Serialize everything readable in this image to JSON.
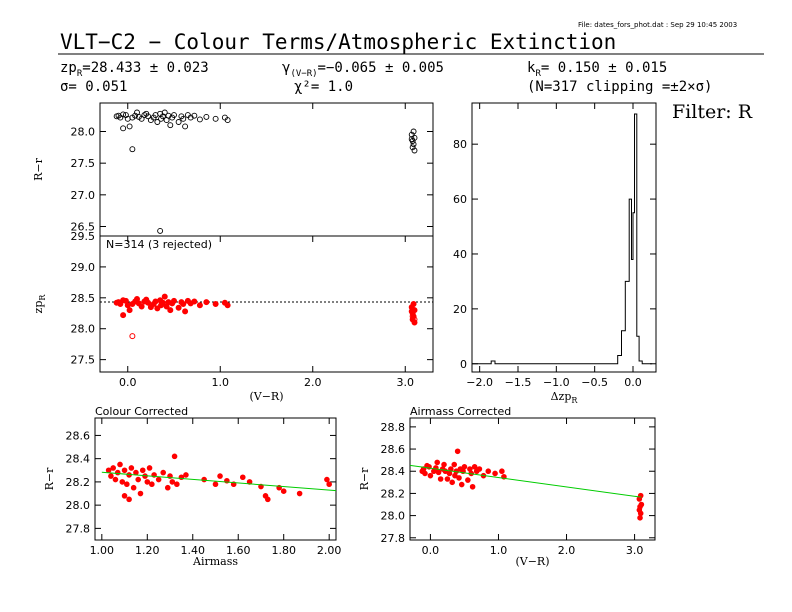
{
  "file_label": "File: dates_fors_phot.dat : Sep 29 10:45 2003",
  "title": "VLT−C2 − Colour Terms/Atmospheric Extinction",
  "stats": {
    "zp": "zp",
    "zp_sub": "R",
    "zp_value": "=28.433 ± 0.023",
    "sigma": "σ= 0.051",
    "gamma": "γ",
    "gamma_sub": "(V−R)",
    "gamma_value": "=−0.065 ± 0.005",
    "chi2": "χ²=  1.0",
    "k": "k",
    "k_sub": "R",
    "k_value": "= 0.150 ± 0.015",
    "clip_note": "(N=317 clipping =±2×σ)"
  },
  "filter_label": "Filter: R",
  "chart_data": [
    {
      "id": "panel1",
      "type": "scatter",
      "ylabel": "R−r",
      "xlim": [
        -0.3,
        3.3
      ],
      "ylim": [
        26.35,
        28.45
      ],
      "yticks": [
        "26.5",
        "27.0",
        "27.5",
        "28.0"
      ],
      "ytick_values": [
        26.5,
        27.0,
        27.5,
        28.0
      ],
      "points": [
        [
          -0.1,
          28.25
        ],
        [
          -0.08,
          28.22
        ],
        [
          -0.05,
          28.27
        ],
        [
          -0.12,
          28.24
        ],
        [
          0.0,
          28.2
        ],
        [
          -0.02,
          28.26
        ],
        [
          0.05,
          28.22
        ],
        [
          0.08,
          28.25
        ],
        [
          0.1,
          28.3
        ],
        [
          0.12,
          28.23
        ],
        [
          0.15,
          28.2
        ],
        [
          0.18,
          28.26
        ],
        [
          0.2,
          28.28
        ],
        [
          0.22,
          28.24
        ],
        [
          0.25,
          28.18
        ],
        [
          0.28,
          28.22
        ],
        [
          0.3,
          28.26
        ],
        [
          0.32,
          28.15
        ],
        [
          0.35,
          28.28
        ],
        [
          0.36,
          28.2
        ],
        [
          0.38,
          28.24
        ],
        [
          0.4,
          28.3
        ],
        [
          0.42,
          28.18
        ],
        [
          0.44,
          28.25
        ],
        [
          0.46,
          28.1
        ],
        [
          0.48,
          28.22
        ],
        [
          0.5,
          28.26
        ],
        [
          0.55,
          28.15
        ],
        [
          0.58,
          28.24
        ],
        [
          0.6,
          28.2
        ],
        [
          0.62,
          28.08
        ],
        [
          0.65,
          28.26
        ],
        [
          0.68,
          28.22
        ],
        [
          0.72,
          28.25
        ],
        [
          0.78,
          28.19
        ],
        [
          0.85,
          28.23
        ],
        [
          0.95,
          28.2
        ],
        [
          1.05,
          28.22
        ],
        [
          1.08,
          28.18
        ],
        [
          -0.05,
          28.05
        ],
        [
          0.02,
          28.08
        ],
        [
          0.05,
          27.72
        ],
        [
          0.35,
          26.43
        ],
        [
          3.07,
          27.95
        ],
        [
          3.08,
          27.85
        ],
        [
          3.09,
          27.8
        ],
        [
          3.1,
          27.9
        ],
        [
          3.08,
          27.75
        ],
        [
          3.09,
          28.0
        ],
        [
          3.07,
          27.88
        ],
        [
          3.1,
          27.7
        ]
      ]
    },
    {
      "id": "panel2",
      "type": "scatter",
      "ylabel": "zp",
      "ylabel_sub": "R",
      "annotation": "N=314 (3 rejected)",
      "xlim": [
        -0.3,
        3.3
      ],
      "ylim": [
        27.3,
        29.5
      ],
      "yticks": [
        "27.5",
        "28.0",
        "28.5",
        "29.0",
        "29.5"
      ],
      "ytick_values": [
        27.5,
        28.0,
        28.5,
        29.0,
        29.5
      ],
      "xticks": [
        "0.0",
        "1.0",
        "2.0",
        "3.0"
      ],
      "xtick_values": [
        0,
        1,
        2,
        3
      ],
      "xlabel": "(V−R)",
      "hline": 28.433,
      "points": [
        [
          -0.1,
          28.43
        ],
        [
          -0.08,
          28.4
        ],
        [
          -0.05,
          28.46
        ],
        [
          -0.12,
          28.42
        ],
        [
          0.0,
          28.38
        ],
        [
          -0.02,
          28.45
        ],
        [
          0.05,
          28.4
        ],
        [
          0.08,
          28.44
        ],
        [
          0.1,
          28.48
        ],
        [
          0.12,
          28.41
        ],
        [
          0.15,
          28.36
        ],
        [
          0.18,
          28.44
        ],
        [
          0.2,
          28.47
        ],
        [
          0.22,
          28.42
        ],
        [
          0.25,
          28.35
        ],
        [
          0.28,
          28.4
        ],
        [
          0.3,
          28.44
        ],
        [
          0.32,
          28.33
        ],
        [
          0.35,
          28.46
        ],
        [
          0.36,
          28.38
        ],
        [
          0.38,
          28.42
        ],
        [
          0.4,
          28.52
        ],
        [
          0.42,
          28.36
        ],
        [
          0.44,
          28.43
        ],
        [
          0.46,
          28.3
        ],
        [
          0.48,
          28.41
        ],
        [
          0.5,
          28.45
        ],
        [
          0.55,
          28.34
        ],
        [
          0.58,
          28.43
        ],
        [
          0.6,
          28.4
        ],
        [
          0.62,
          28.28
        ],
        [
          0.65,
          28.45
        ],
        [
          0.68,
          28.41
        ],
        [
          0.72,
          28.44
        ],
        [
          0.78,
          28.38
        ],
        [
          0.85,
          28.43
        ],
        [
          0.95,
          28.4
        ],
        [
          1.05,
          28.42
        ],
        [
          1.08,
          28.38
        ],
        [
          -0.05,
          28.22
        ],
        [
          0.02,
          28.3
        ],
        [
          3.07,
          28.35
        ],
        [
          3.08,
          28.25
        ],
        [
          3.09,
          28.2
        ],
        [
          3.1,
          28.3
        ],
        [
          3.08,
          28.15
        ],
        [
          3.09,
          28.4
        ],
        [
          3.07,
          28.28
        ],
        [
          3.1,
          28.1
        ]
      ],
      "rejected": [
        [
          0.05,
          27.88
        ],
        [
          3.08,
          28.2
        ],
        [
          3.1,
          28.15
        ]
      ]
    },
    {
      "id": "histogram",
      "type": "line",
      "xlabel": "Δzp",
      "xlabel_sub": "R",
      "xlim": [
        -2.1,
        0.3
      ],
      "ylim": [
        -3,
        95
      ],
      "xticks": [
        "−2.0",
        "−1.5",
        "−1.0",
        "−0.5",
        "0.0"
      ],
      "xtick_values": [
        -2.0,
        -1.5,
        -1.0,
        -0.5,
        0.0
      ],
      "yticks": [
        "0",
        "20",
        "40",
        "60",
        "80"
      ],
      "ytick_values": [
        0,
        20,
        40,
        60,
        80
      ],
      "x": [
        -2.1,
        -1.85,
        -1.85,
        -1.8,
        -1.8,
        -0.2,
        -0.2,
        -0.15,
        -0.15,
        -0.1,
        -0.1,
        -0.05,
        -0.05,
        -0.02,
        -0.02,
        0.0,
        0.0,
        0.02,
        0.02,
        0.05,
        0.05,
        0.08,
        0.08,
        0.12,
        0.12,
        0.25
      ],
      "y": [
        0,
        0,
        1,
        1,
        0,
        0,
        3,
        3,
        12,
        12,
        30,
        30,
        60,
        60,
        38,
        38,
        55,
        55,
        91,
        91,
        10,
        10,
        1,
        1,
        0,
        0
      ]
    },
    {
      "id": "colour_corrected",
      "type": "scatter",
      "title": "Colour Corrected",
      "xlabel": "Airmass",
      "ylabel": "R−r",
      "xlim": [
        0.97,
        2.03
      ],
      "ylim": [
        27.7,
        28.75
      ],
      "xticks": [
        "1.00",
        "1.20",
        "1.40",
        "1.60",
        "1.80",
        "2.00"
      ],
      "xtick_values": [
        1.0,
        1.2,
        1.4,
        1.6,
        1.8,
        2.0
      ],
      "yticks": [
        "27.8",
        "28.0",
        "28.2",
        "28.4",
        "28.6"
      ],
      "ytick_values": [
        27.8,
        28.0,
        28.2,
        28.4,
        28.6
      ],
      "fit": [
        [
          1.0,
          28.283
        ],
        [
          2.03,
          28.125
        ]
      ],
      "points": [
        [
          1.03,
          28.3
        ],
        [
          1.04,
          28.25
        ],
        [
          1.05,
          28.32
        ],
        [
          1.06,
          28.22
        ],
        [
          1.07,
          28.28
        ],
        [
          1.08,
          28.35
        ],
        [
          1.09,
          28.2
        ],
        [
          1.1,
          28.3
        ],
        [
          1.11,
          28.18
        ],
        [
          1.12,
          28.26
        ],
        [
          1.13,
          28.32
        ],
        [
          1.14,
          28.15
        ],
        [
          1.15,
          28.28
        ],
        [
          1.16,
          28.22
        ],
        [
          1.17,
          28.1
        ],
        [
          1.18,
          28.3
        ],
        [
          1.19,
          28.25
        ],
        [
          1.2,
          28.2
        ],
        [
          1.21,
          28.32
        ],
        [
          1.22,
          28.18
        ],
        [
          1.23,
          28.26
        ],
        [
          1.25,
          28.22
        ],
        [
          1.27,
          28.28
        ],
        [
          1.29,
          28.15
        ],
        [
          1.3,
          28.25
        ],
        [
          1.31,
          28.2
        ],
        [
          1.32,
          28.42
        ],
        [
          1.33,
          28.18
        ],
        [
          1.35,
          28.24
        ],
        [
          1.37,
          28.26
        ],
        [
          1.1,
          28.08
        ],
        [
          1.12,
          28.05
        ],
        [
          1.45,
          28.22
        ],
        [
          1.5,
          28.18
        ],
        [
          1.52,
          28.25
        ],
        [
          1.55,
          28.21
        ],
        [
          1.58,
          28.18
        ],
        [
          1.62,
          28.24
        ],
        [
          1.65,
          28.2
        ],
        [
          1.7,
          28.16
        ],
        [
          1.72,
          28.08
        ],
        [
          1.73,
          28.05
        ],
        [
          1.78,
          28.15
        ],
        [
          1.8,
          28.12
        ],
        [
          1.87,
          28.1
        ],
        [
          1.99,
          28.22
        ],
        [
          2.0,
          28.18
        ]
      ]
    },
    {
      "id": "airmass_corrected",
      "type": "scatter",
      "title": "Airmass Corrected",
      "xlabel": "(V−R)",
      "ylabel": "R−r",
      "xlim": [
        -0.3,
        3.3
      ],
      "ylim": [
        27.78,
        28.88
      ],
      "xticks": [
        "0.0",
        "1.0",
        "2.0",
        "3.0"
      ],
      "xtick_values": [
        0,
        1,
        2,
        3
      ],
      "yticks": [
        "27.8",
        "28.0",
        "28.2",
        "28.4",
        "28.6",
        "28.8"
      ],
      "ytick_values": [
        27.8,
        28.0,
        28.2,
        28.4,
        28.6,
        28.8
      ],
      "fit": [
        [
          -0.3,
          28.453
        ],
        [
          3.1,
          28.166
        ]
      ],
      "points": [
        [
          -0.1,
          28.42
        ],
        [
          -0.08,
          28.38
        ],
        [
          -0.05,
          28.45
        ],
        [
          -0.12,
          28.4
        ],
        [
          0.0,
          28.36
        ],
        [
          -0.02,
          28.44
        ],
        [
          0.05,
          28.4
        ],
        [
          0.08,
          28.43
        ],
        [
          0.1,
          28.48
        ],
        [
          0.12,
          28.39
        ],
        [
          0.15,
          28.33
        ],
        [
          0.18,
          28.42
        ],
        [
          0.2,
          28.46
        ],
        [
          0.22,
          28.4
        ],
        [
          0.25,
          28.33
        ],
        [
          0.28,
          28.38
        ],
        [
          0.3,
          28.42
        ],
        [
          0.32,
          28.3
        ],
        [
          0.35,
          28.46
        ],
        [
          0.36,
          28.36
        ],
        [
          0.38,
          28.4
        ],
        [
          0.4,
          28.58
        ],
        [
          0.42,
          28.34
        ],
        [
          0.44,
          28.42
        ],
        [
          0.46,
          28.28
        ],
        [
          0.48,
          28.4
        ],
        [
          0.5,
          28.44
        ],
        [
          0.55,
          28.32
        ],
        [
          0.58,
          28.42
        ],
        [
          0.6,
          28.38
        ],
        [
          0.62,
          28.26
        ],
        [
          0.65,
          28.44
        ],
        [
          0.68,
          28.4
        ],
        [
          0.72,
          28.42
        ],
        [
          0.78,
          28.36
        ],
        [
          0.85,
          28.4
        ],
        [
          0.95,
          28.38
        ],
        [
          1.05,
          28.4
        ],
        [
          1.08,
          28.35
        ],
        [
          3.07,
          28.15
        ],
        [
          3.08,
          28.08
        ],
        [
          3.09,
          28.02
        ],
        [
          3.1,
          28.1
        ],
        [
          3.08,
          27.98
        ],
        [
          3.09,
          28.18
        ],
        [
          3.07,
          28.05
        ]
      ]
    }
  ]
}
